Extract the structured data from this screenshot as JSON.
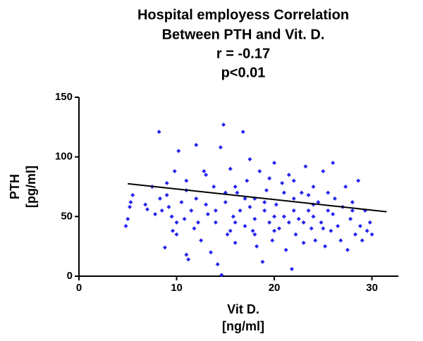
{
  "chart_data": {
    "type": "scatter",
    "title": [
      "Hospital employess Correlation",
      "Between PTH and Vit. D.",
      "r = -0.17",
      "p<0.01"
    ],
    "xlabel": [
      "Vit D.",
      "[ng/ml]"
    ],
    "ylabel": [
      "PTH",
      "[pg/ml]"
    ],
    "xlim": [
      0,
      32.7
    ],
    "ylim": [
      0,
      150
    ],
    "xticks": [
      0,
      10,
      20,
      30
    ],
    "yticks": [
      0,
      50,
      100,
      150
    ],
    "color": "#2424f0",
    "trend": {
      "x": [
        5,
        31.5
      ],
      "values": [
        77.5,
        54
      ],
      "color": "#000000"
    },
    "x": [
      5,
      4.8,
      5.2,
      5.5,
      5.3,
      6.8,
      7,
      7.5,
      7.8,
      8.2,
      8.3,
      8.5,
      8.8,
      9,
      9.2,
      9.5,
      9.8,
      9.6,
      10,
      10.2,
      10.5,
      10.8,
      11,
      11.2,
      11,
      11.5,
      11.8,
      12,
      12.2,
      12.5,
      12.8,
      13,
      13.2,
      13.5,
      13.8,
      14,
      14.2,
      14.5,
      14.6,
      14.8,
      15,
      15.2,
      15.5,
      15.8,
      16,
      16.2,
      16.5,
      16.8,
      17,
      17.2,
      17.5,
      17.8,
      18,
      18.2,
      18.5,
      18.8,
      19,
      19.2,
      19.5,
      19.8,
      20,
      20.2,
      20.5,
      20.8,
      21,
      21.2,
      21.5,
      21.8,
      22,
      22.2,
      22.5,
      22.8,
      23,
      23.2,
      23.5,
      23.8,
      24,
      24.2,
      24.5,
      24.8,
      25,
      25.2,
      25.5,
      25.8,
      26,
      26.2,
      26.5,
      26.8,
      27,
      27.3,
      27.5,
      27.8,
      28,
      28.3,
      28.6,
      28.8,
      29,
      29.3,
      29.5,
      29.8,
      30,
      13,
      15,
      16,
      17,
      18,
      19,
      20,
      21,
      22,
      23,
      24,
      25,
      12,
      11,
      10,
      9,
      14,
      16,
      18,
      20,
      22,
      24,
      26,
      28,
      15.5,
      17.5,
      19.5,
      21.5,
      23.5,
      25.5
    ],
    "values": [
      48,
      42,
      58,
      68,
      62,
      60,
      56,
      75,
      52,
      121,
      65,
      55,
      24,
      78,
      58,
      50,
      88,
      38,
      35,
      105,
      62,
      48,
      18,
      14,
      72,
      55,
      40,
      110,
      45,
      30,
      88,
      60,
      52,
      20,
      75,
      45,
      10,
      108,
      1,
      127,
      62,
      35,
      90,
      50,
      28,
      70,
      55,
      121,
      42,
      80,
      98,
      38,
      65,
      25,
      88,
      12,
      55,
      72,
      45,
      30,
      95,
      60,
      40,
      78,
      50,
      22,
      85,
      6,
      65,
      35,
      48,
      70,
      28,
      92,
      55,
      40,
      75,
      30,
      62,
      45,
      88,
      25,
      55,
      38,
      95,
      65,
      42,
      30,
      58,
      75,
      22,
      48,
      62,
      35,
      80,
      42,
      30,
      55,
      38,
      45,
      35,
      85,
      70,
      45,
      65,
      48,
      62,
      38,
      70,
      55,
      45,
      60,
      40,
      65,
      80,
      45,
      68,
      55,
      75,
      35,
      50,
      80,
      50,
      52,
      55,
      38,
      58,
      82,
      45,
      68,
      70
    ]
  }
}
